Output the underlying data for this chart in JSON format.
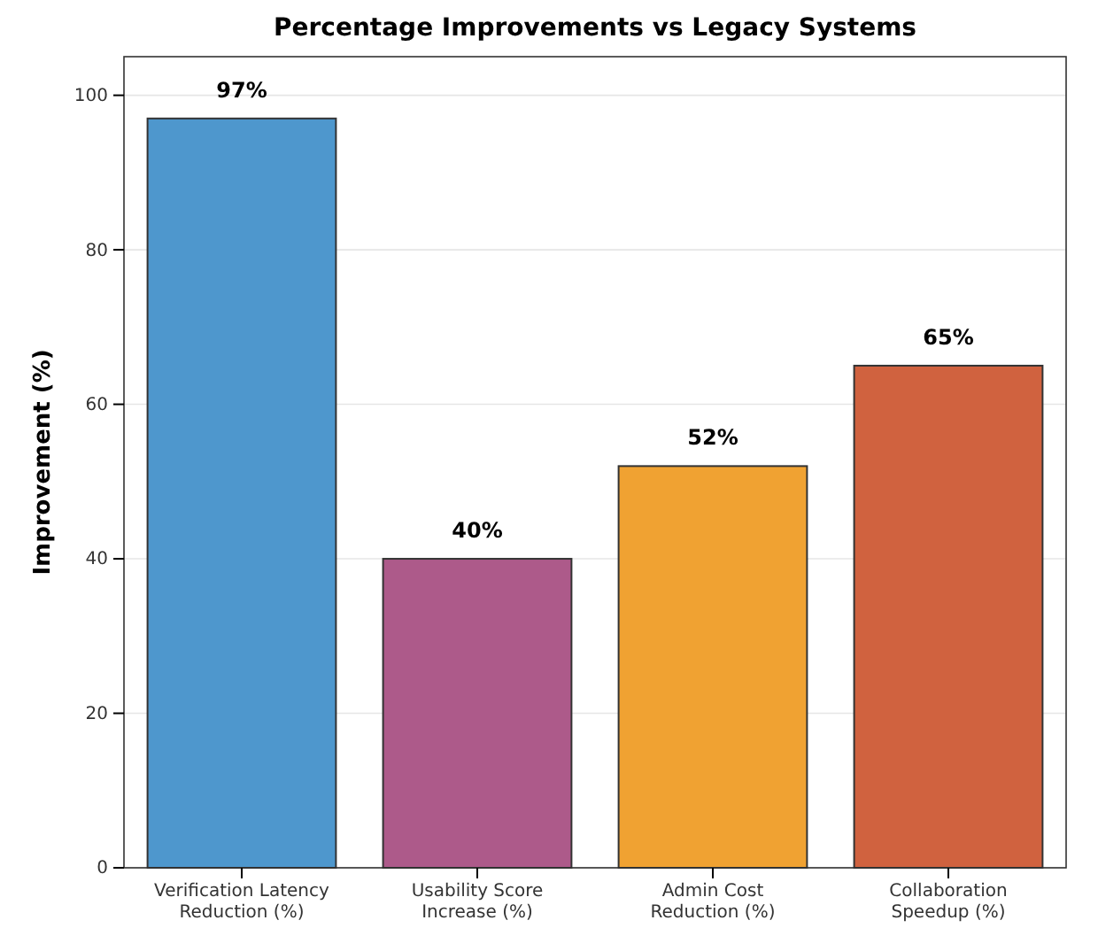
{
  "chart_data": {
    "type": "bar",
    "title": "Percentage Improvements vs Legacy Systems",
    "ylabel": "Improvement (%)",
    "categories": [
      "Verification Latency\nReduction (%)",
      "Usability Score\nIncrease (%)",
      "Admin Cost\nReduction (%)",
      "Collaboration\nSpeedup (%)"
    ],
    "values": [
      97,
      40,
      52,
      65
    ],
    "colors": [
      "#4e97cd",
      "#ad5a8a",
      "#f0a232",
      "#d0623f"
    ],
    "value_labels": [
      "97%",
      "40%",
      "52%",
      "65%"
    ],
    "ylim": [
      0,
      105
    ],
    "yticks": [
      0,
      20,
      40,
      60,
      80,
      100
    ],
    "grid": "y"
  }
}
